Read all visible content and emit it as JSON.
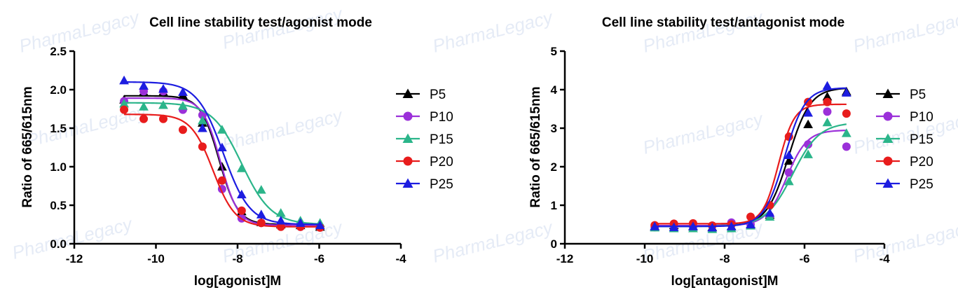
{
  "colors": {
    "P5": "#000000",
    "P10": "#9b30d9",
    "P15": "#2bb58a",
    "P20": "#e81c1c",
    "P25": "#1d1de0"
  },
  "watermark": "PharmaLegacy",
  "chart_data": [
    {
      "type": "scatter",
      "title": "Cell line stability test/agonist mode",
      "xlabel": "log[agonist]M",
      "ylabel": "Ratio of 665/615nm",
      "xlim": [
        -12,
        -4
      ],
      "ylim": [
        0,
        2.5
      ],
      "xticks": [
        -12,
        -10,
        -8,
        -6,
        -4
      ],
      "yticks": [
        0.0,
        0.5,
        1.0,
        1.5,
        2.0,
        2.5
      ],
      "ytick_labels": [
        "0.0",
        "0.5",
        "1.0",
        "1.5",
        "2.0",
        "2.5"
      ],
      "legend": "right",
      "series": [
        {
          "name": "P5",
          "marker": "triangle",
          "x": [
            -10.78,
            -10.3,
            -9.82,
            -9.34,
            -8.86,
            -8.38,
            -7.9,
            -7.42,
            -6.94,
            -6.46,
            -5.98
          ],
          "y": [
            1.87,
            1.97,
            1.97,
            1.93,
            1.57,
            1.0,
            0.42,
            0.28,
            0.25,
            0.24,
            0.22
          ],
          "fit": {
            "top": 1.92,
            "bottom": 0.25,
            "logec50": -8.45,
            "hill": 1.9
          }
        },
        {
          "name": "P10",
          "marker": "circle",
          "x": [
            -10.78,
            -10.3,
            -9.82,
            -9.34,
            -8.86,
            -8.38,
            -7.9,
            -7.42,
            -6.94,
            -6.46,
            -5.98
          ],
          "y": [
            1.85,
            1.98,
            1.98,
            1.74,
            1.67,
            0.71,
            0.33,
            0.27,
            0.24,
            0.22,
            0.22
          ],
          "fit": {
            "top": 1.89,
            "bottom": 0.24,
            "logec50": -8.42,
            "hill": 2.0
          }
        },
        {
          "name": "P15",
          "marker": "triangle",
          "x": [
            -10.78,
            -10.3,
            -9.82,
            -9.34,
            -8.86,
            -8.38,
            -7.9,
            -7.42,
            -6.94,
            -6.46,
            -5.98
          ],
          "y": [
            1.82,
            1.78,
            1.8,
            1.79,
            1.6,
            1.48,
            0.98,
            0.7,
            0.4,
            0.3,
            0.27
          ],
          "fit": {
            "top": 1.83,
            "bottom": 0.25,
            "logec50": -7.9,
            "hill": 1.2
          }
        },
        {
          "name": "P20",
          "marker": "circle",
          "x": [
            -10.78,
            -10.3,
            -9.82,
            -9.34,
            -8.86,
            -8.38,
            -7.9,
            -7.42,
            -6.94,
            -6.46,
            -5.98
          ],
          "y": [
            1.74,
            1.62,
            1.62,
            1.48,
            1.26,
            0.82,
            0.43,
            0.27,
            0.22,
            0.22,
            0.21
          ],
          "fit": {
            "top": 1.68,
            "bottom": 0.22,
            "logec50": -8.6,
            "hill": 1.6
          }
        },
        {
          "name": "P25",
          "marker": "triangle",
          "x": [
            -10.78,
            -10.3,
            -9.82,
            -9.34,
            -8.86,
            -8.38,
            -7.9,
            -7.42,
            -6.94,
            -6.46,
            -5.98
          ],
          "y": [
            2.12,
            2.05,
            2.01,
            1.97,
            1.5,
            1.25,
            0.64,
            0.38,
            0.3,
            0.27,
            0.24
          ],
          "fit": {
            "top": 2.1,
            "bottom": 0.25,
            "logec50": -8.35,
            "hill": 1.35
          }
        }
      ]
    },
    {
      "type": "scatter",
      "title": "Cell line stability test/antagonist mode",
      "xlabel": "log[antagonist]M",
      "ylabel": "Ratio of 665/615nm",
      "xlim": [
        -12,
        -4
      ],
      "ylim": [
        0,
        5
      ],
      "xticks": [
        -12,
        -10,
        -8,
        -6,
        -4
      ],
      "yticks": [
        0,
        1,
        2,
        3,
        4,
        5
      ],
      "ytick_labels": [
        "0",
        "1",
        "2",
        "3",
        "4",
        "5"
      ],
      "legend": "right",
      "series": [
        {
          "name": "P5",
          "marker": "triangle",
          "x": [
            -9.75,
            -9.27,
            -8.79,
            -8.31,
            -7.83,
            -7.35,
            -6.87,
            -6.39,
            -5.91,
            -5.43,
            -4.95
          ],
          "y": [
            0.45,
            0.48,
            0.45,
            0.43,
            0.45,
            0.5,
            0.75,
            2.15,
            3.1,
            3.82,
            3.95
          ],
          "fit": {
            "bottom": 0.47,
            "top": 4.05,
            "logec50": -6.4,
            "hill": 1.6
          }
        },
        {
          "name": "P10",
          "marker": "circle",
          "x": [
            -9.75,
            -9.27,
            -8.79,
            -8.31,
            -7.83,
            -7.35,
            -6.87,
            -6.39,
            -5.91,
            -5.43,
            -4.95
          ],
          "y": [
            0.43,
            0.45,
            0.44,
            0.47,
            0.55,
            0.5,
            0.72,
            1.85,
            2.58,
            3.43,
            2.52
          ],
          "fit": {
            "bottom": 0.47,
            "top": 2.95,
            "logec50": -6.45,
            "hill": 1.7
          }
        },
        {
          "name": "P15",
          "marker": "triangle",
          "x": [
            -9.75,
            -9.27,
            -8.79,
            -8.31,
            -7.83,
            -7.35,
            -6.87,
            -6.39,
            -5.91,
            -5.43,
            -4.95
          ],
          "y": [
            0.42,
            0.4,
            0.4,
            0.38,
            0.4,
            0.47,
            0.7,
            1.62,
            2.32,
            3.15,
            2.87
          ],
          "fit": {
            "bottom": 0.45,
            "top": 3.15,
            "logec50": -6.3,
            "hill": 1.3
          }
        },
        {
          "name": "P20",
          "marker": "circle",
          "x": [
            -9.75,
            -9.27,
            -8.79,
            -8.31,
            -7.83,
            -7.35,
            -6.87,
            -6.39,
            -5.91,
            -5.43,
            -4.95
          ],
          "y": [
            0.48,
            0.52,
            0.53,
            0.47,
            0.5,
            0.7,
            1.0,
            2.78,
            3.68,
            3.68,
            3.38
          ],
          "fit": {
            "bottom": 0.52,
            "top": 3.62,
            "logec50": -6.65,
            "hill": 2.2
          }
        },
        {
          "name": "P25",
          "marker": "triangle",
          "x": [
            -9.75,
            -9.27,
            -8.79,
            -8.31,
            -7.83,
            -7.35,
            -6.87,
            -6.39,
            -5.91,
            -5.43,
            -4.95
          ],
          "y": [
            0.45,
            0.43,
            0.45,
            0.42,
            0.45,
            0.5,
            0.8,
            2.3,
            3.4,
            4.1,
            3.92
          ],
          "fit": {
            "bottom": 0.45,
            "top": 4.05,
            "logec50": -6.5,
            "hill": 1.7
          }
        }
      ]
    }
  ]
}
